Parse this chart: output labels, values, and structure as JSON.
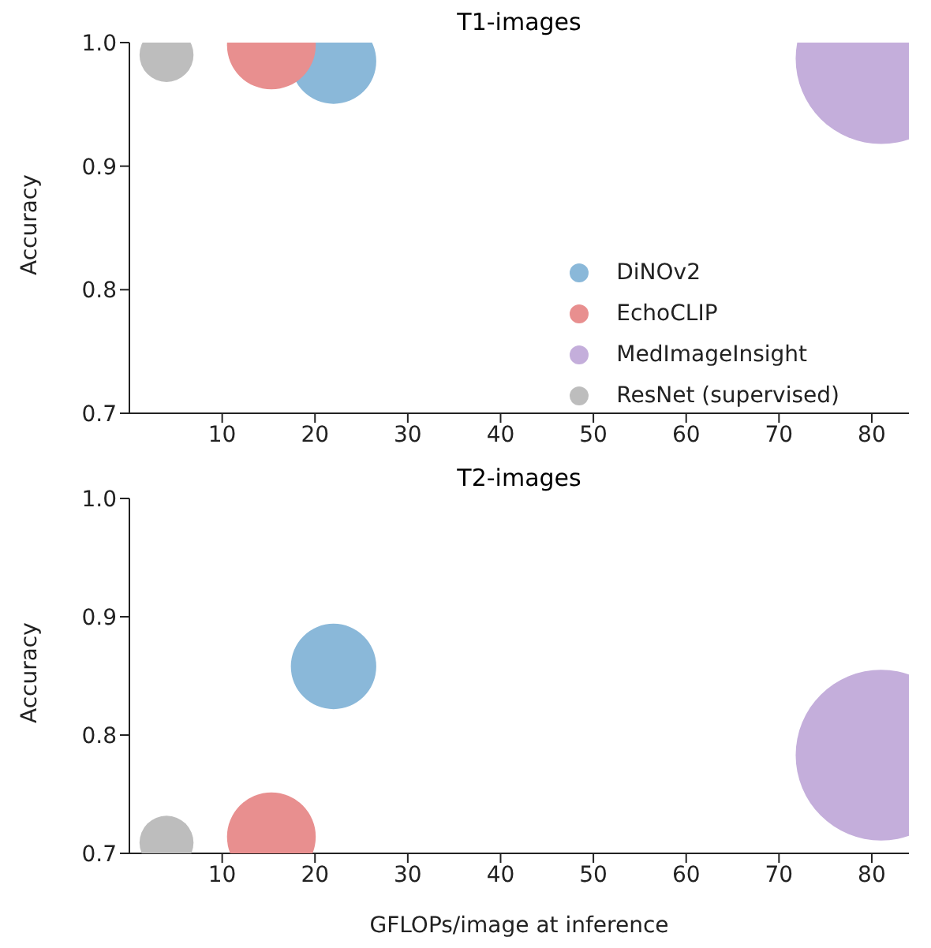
{
  "chart_data": [
    {
      "type": "bubble",
      "title": "T1-images",
      "ylabel": "Accuracy",
      "xlim": [
        0,
        84
      ],
      "xticks": [
        10,
        20,
        30,
        40,
        50,
        60,
        70,
        80
      ],
      "ylim": [
        0.7,
        1.0
      ],
      "yticks": [
        0.7,
        0.8,
        0.9,
        {
          "value": 1.0,
          "label": "1.0"
        }
      ],
      "grid": false,
      "legend": "bottom right",
      "series": [
        {
          "name": "DiNOv2",
          "color": "#8ab8d9",
          "x": [
            22
          ],
          "values": [
            0.985
          ],
          "sizes": [
            0.25
          ]
        },
        {
          "name": "EchoCLIP",
          "color": "#e88f8f",
          "x": [
            15.3
          ],
          "values": [
            0.998
          ],
          "sizes": [
            0.27
          ]
        },
        {
          "name": "MedImageInsight",
          "color": "#c4aedb",
          "x": [
            81
          ],
          "values": [
            0.987
          ],
          "sizes": [
            1
          ]
        },
        {
          "name": "ResNet (supervised)",
          "color": "#bdbdbd",
          "x": [
            4
          ],
          "values": [
            0.99
          ],
          "sizes": [
            0.1
          ]
        }
      ]
    },
    {
      "type": "bubble",
      "title": "T2-images",
      "xlabel": "GFLOPs/image at inference",
      "ylabel": "Accuracy",
      "xlim": [
        0,
        84
      ],
      "xticks": [
        10,
        20,
        30,
        40,
        50,
        60,
        70,
        80
      ],
      "ylim": [
        0.7,
        1.0
      ],
      "yticks": [
        0.7,
        0.8,
        0.9,
        {
          "value": 1.0,
          "label": "1.0"
        }
      ],
      "grid": false,
      "series": [
        {
          "color": "#8ab8d9",
          "x": [
            22
          ],
          "values": [
            0.858
          ],
          "sizes": [
            0.25
          ]
        },
        {
          "color": "#e88f8f",
          "x": [
            15.3
          ],
          "values": [
            0.714
          ],
          "sizes": [
            0.27
          ]
        },
        {
          "color": "#c4aedb",
          "x": [
            81
          ],
          "values": [
            0.783
          ],
          "sizes": [
            1
          ]
        },
        {
          "color": "#bdbdbd",
          "x": [
            4
          ],
          "values": [
            0.709
          ],
          "sizes": [
            0.1
          ]
        }
      ]
    }
  ]
}
